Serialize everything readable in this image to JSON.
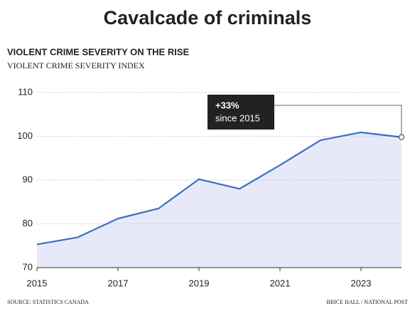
{
  "headline": "Cavalcade of criminals",
  "chart_data": {
    "type": "line",
    "title": "VIOLENT CRIME SEVERITY ON THE RISE",
    "subtitle": "VIOLENT CRIME SEVERITY INDEX",
    "x": [
      2015,
      2016,
      2017,
      2018,
      2019,
      2020,
      2021,
      2022,
      2023,
      2024
    ],
    "values": [
      75.3,
      76.9,
      81.2,
      83.5,
      90.2,
      88.0,
      93.4,
      99.1,
      100.9,
      99.8
    ],
    "color": "#3b6fc4",
    "area_color": "#e7e9f8",
    "xlim": [
      2015,
      2024
    ],
    "xticks": [
      2015,
      2017,
      2019,
      2021,
      2023
    ],
    "ylim": [
      70,
      110
    ],
    "yticks": [
      70,
      80,
      90,
      100,
      110
    ],
    "grid": true,
    "annotation": {
      "title": "+33%",
      "text": "since 2015"
    },
    "source": "SOURCE: STATISTICS CANADA",
    "credit": "BRICE HALL / NATIONAL POST"
  }
}
